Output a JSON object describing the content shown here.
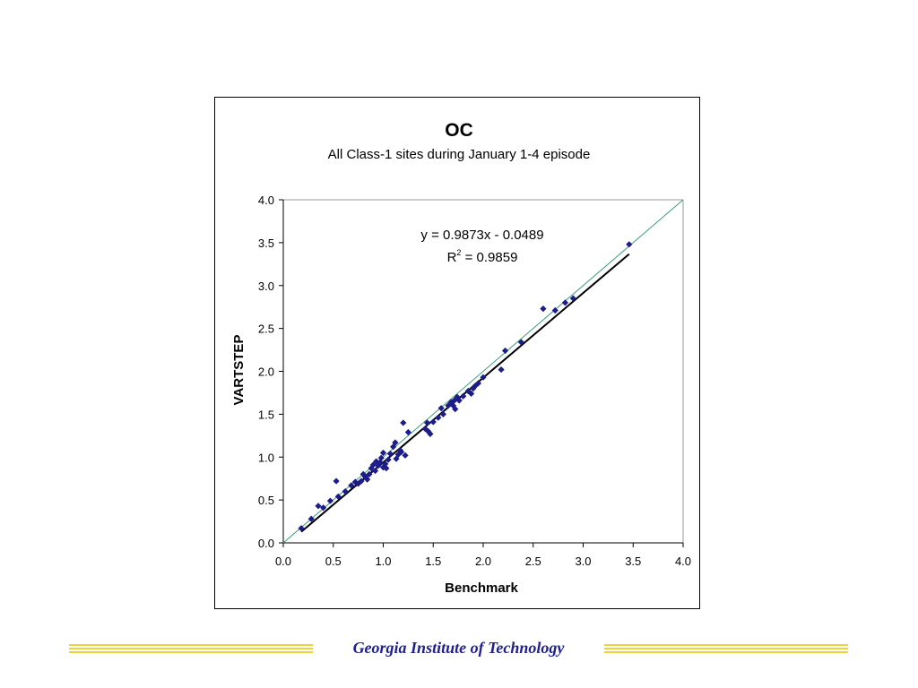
{
  "chart_data": {
    "type": "scatter",
    "title": "OC",
    "subtitle": "All Class-1 sites during January 1-4 episode",
    "xlabel": "Benchmark",
    "ylabel": "VARTSTEP",
    "xlim": [
      0,
      4
    ],
    "ylim": [
      0,
      4
    ],
    "xticks": [
      "0.0",
      "0.5",
      "1.0",
      "1.5",
      "2.0",
      "2.5",
      "3.0",
      "3.5",
      "4.0"
    ],
    "yticks": [
      "0.0",
      "0.5",
      "1.0",
      "1.5",
      "2.0",
      "2.5",
      "3.0",
      "3.5",
      "4.0"
    ],
    "grid": false,
    "equation": "y = 0.9873x - 0.0489",
    "r2_label": "R",
    "r2_sup": "2",
    "r2_value": " = 0.9859",
    "trendline": {
      "slope": 0.9873,
      "intercept": -0.0489,
      "x_range": [
        0.18,
        3.46
      ]
    },
    "reference_line": {
      "x_range": [
        0,
        4
      ]
    },
    "colors": {
      "points": "#1c1c8a",
      "trendline": "#000000",
      "reference_line": "#3a9e78"
    },
    "points": [
      [
        0.18,
        0.17
      ],
      [
        0.28,
        0.28
      ],
      [
        0.35,
        0.43
      ],
      [
        0.4,
        0.41
      ],
      [
        0.47,
        0.49
      ],
      [
        0.53,
        0.72
      ],
      [
        0.55,
        0.54
      ],
      [
        0.62,
        0.6
      ],
      [
        0.68,
        0.67
      ],
      [
        0.72,
        0.71
      ],
      [
        0.75,
        0.69
      ],
      [
        0.78,
        0.72
      ],
      [
        0.8,
        0.8
      ],
      [
        0.82,
        0.77
      ],
      [
        0.84,
        0.74
      ],
      [
        0.86,
        0.8
      ],
      [
        0.88,
        0.87
      ],
      [
        0.9,
        0.91
      ],
      [
        0.92,
        0.84
      ],
      [
        0.93,
        0.95
      ],
      [
        0.95,
        0.9
      ],
      [
        0.97,
        0.94
      ],
      [
        0.98,
        0.99
      ],
      [
        1.0,
        1.05
      ],
      [
        1.0,
        0.88
      ],
      [
        1.02,
        0.92
      ],
      [
        1.03,
        0.87
      ],
      [
        1.05,
        0.97
      ],
      [
        1.07,
        1.04
      ],
      [
        1.1,
        1.12
      ],
      [
        1.12,
        1.17
      ],
      [
        1.13,
        0.98
      ],
      [
        1.15,
        1.03
      ],
      [
        1.17,
        1.08
      ],
      [
        1.18,
        1.06
      ],
      [
        1.2,
        1.4
      ],
      [
        1.22,
        1.02
      ],
      [
        1.25,
        1.29
      ],
      [
        1.42,
        1.33
      ],
      [
        1.44,
        1.4
      ],
      [
        1.45,
        1.3
      ],
      [
        1.47,
        1.27
      ],
      [
        1.5,
        1.41
      ],
      [
        1.55,
        1.46
      ],
      [
        1.58,
        1.57
      ],
      [
        1.6,
        1.5
      ],
      [
        1.65,
        1.6
      ],
      [
        1.68,
        1.64
      ],
      [
        1.7,
        1.6
      ],
      [
        1.71,
        1.66
      ],
      [
        1.72,
        1.56
      ],
      [
        1.74,
        1.7
      ],
      [
        1.76,
        1.66
      ],
      [
        1.8,
        1.71
      ],
      [
        1.85,
        1.77
      ],
      [
        1.88,
        1.74
      ],
      [
        1.9,
        1.8
      ],
      [
        1.92,
        1.83
      ],
      [
        1.95,
        1.86
      ],
      [
        2.0,
        1.93
      ],
      [
        2.18,
        2.02
      ],
      [
        2.22,
        2.24
      ],
      [
        2.38,
        2.34
      ],
      [
        2.6,
        2.73
      ],
      [
        2.72,
        2.71
      ],
      [
        2.82,
        2.8
      ],
      [
        2.9,
        2.85
      ],
      [
        3.46,
        3.48
      ]
    ]
  },
  "footer": {
    "institution": "Georgia Institute of Technology"
  }
}
